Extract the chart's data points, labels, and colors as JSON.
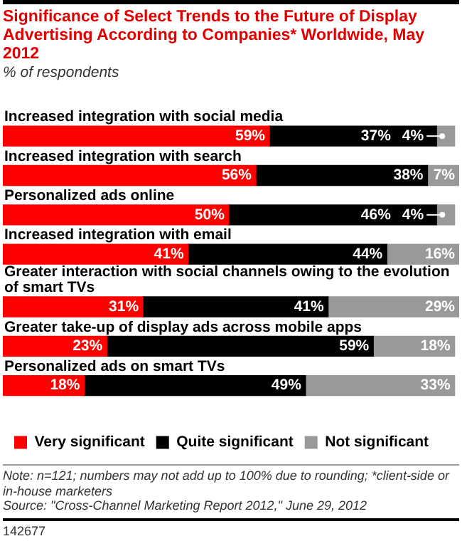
{
  "chart_data": {
    "type": "bar",
    "orientation": "horizontal",
    "stacked": true,
    "title": "Significance of Select Trends to the Future of Display Advertising According to Companies* Worldwide, May 2012",
    "subtitle": "% of respondents",
    "categories": [
      "Increased integration with social media",
      "Increased integration with search",
      "Personalized ads online",
      "Increased integration with email",
      "Greater interaction with social channels owing to the evolution of smart TVs",
      "Greater take-up of display ads across mobile apps",
      "Personalized ads on smart TVs"
    ],
    "series": [
      {
        "name": "Very significant",
        "color": "#ff0000",
        "values": [
          59,
          56,
          50,
          41,
          31,
          23,
          18
        ],
        "value_labels": [
          "59%",
          "56%",
          "50%",
          "41%",
          "31%",
          "23%",
          "18%"
        ]
      },
      {
        "name": "Quite significant",
        "color": "#000000",
        "values": [
          37,
          38,
          46,
          44,
          41,
          59,
          49
        ],
        "value_labels": [
          "37%",
          "38%",
          "46%",
          "44%",
          "41%",
          "59%",
          "49%"
        ]
      },
      {
        "name": "Not significant",
        "color": "#999999",
        "values": [
          4,
          7,
          4,
          16,
          29,
          18,
          33
        ],
        "value_labels": [
          "4%",
          "7%",
          "4%",
          "16%",
          "29%",
          "18%",
          "33%"
        ]
      }
    ],
    "legend": "bottom",
    "annotations": [
      "Note: n=121; numbers may not add up to 100% due to rounding; *client-side or in-house marketers",
      "Source: \"Cross-Channel Marketing Report 2012,\" June 29, 2012",
      "142677"
    ]
  }
}
